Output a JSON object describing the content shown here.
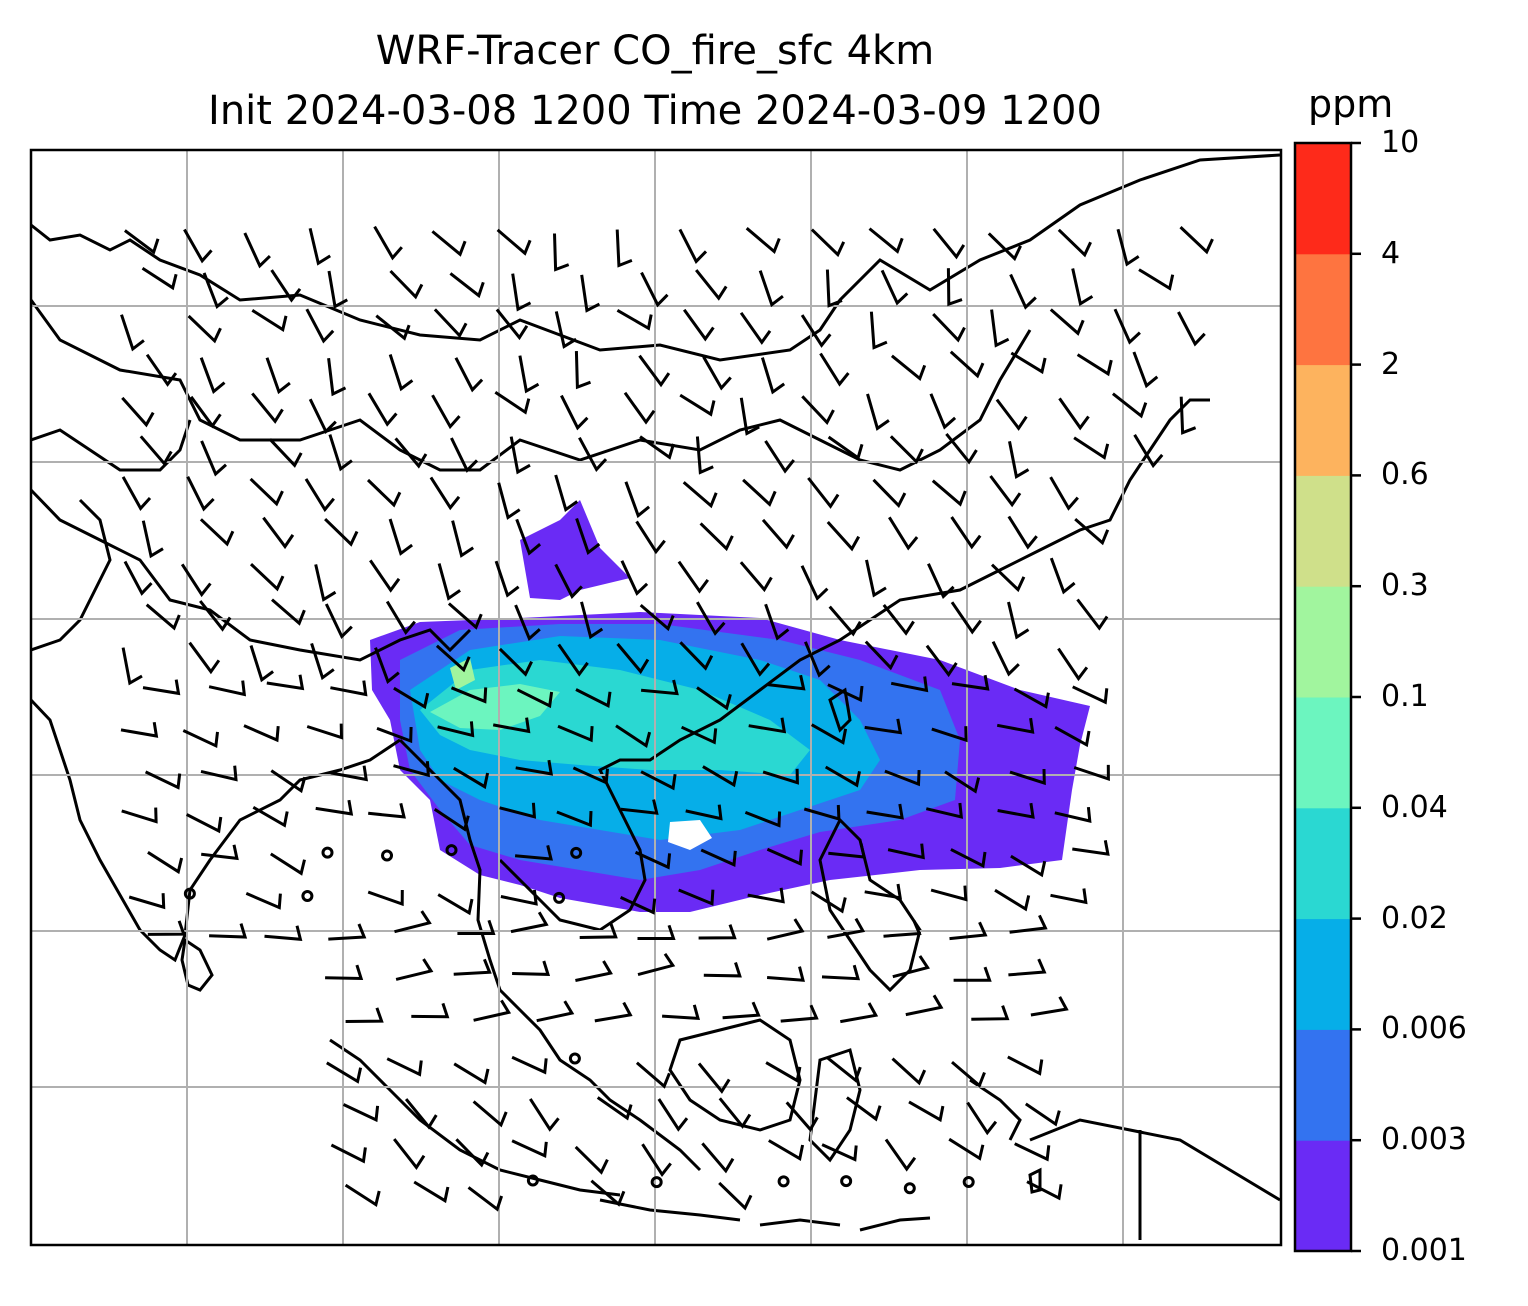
{
  "title_line1": "WRF-Tracer CO_fire_sfc 4km",
  "title_line2": "Init 2024-03-08 1200 Time 2024-03-09 1200",
  "colorbar": {
    "unit": "ppm",
    "ticks": [
      "0.001",
      "0.003",
      "0.006",
      "0.02",
      "0.04",
      "0.1",
      "0.3",
      "0.6",
      "2",
      "4",
      "10"
    ],
    "colors": [
      "#6a2bf5",
      "#3373f0",
      "#06aee8",
      "#2ad8d2",
      "#6cf5bf",
      "#a1f59e",
      "#cfe08a",
      "#fdb35e",
      "#fe7440",
      "#fe2a1a"
    ]
  },
  "map": {
    "gridlines": true,
    "coastline_color": "#000000",
    "grid_color": "#b0b0b0"
  }
}
